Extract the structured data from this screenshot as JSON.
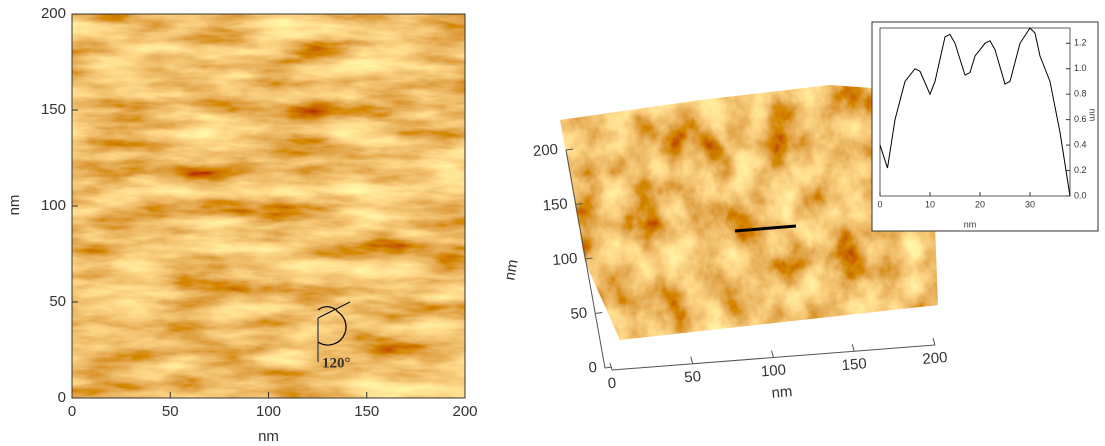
{
  "chart_data": [
    {
      "type": "image",
      "xlabel": "nm",
      "ylabel": "nm",
      "annotation": "120°",
      "xlim": [
        0,
        200
      ],
      "ylim": [
        0,
        200
      ],
      "xticks": [
        0,
        50,
        100,
        150,
        200
      ],
      "yticks": [
        0,
        50,
        100,
        150,
        200
      ]
    },
    {
      "type": "surface",
      "xlabel": "nm",
      "ylabel": "nm",
      "xlim": [
        0,
        200
      ],
      "ylim": [
        0,
        200
      ],
      "xticks": [
        0,
        50,
        100,
        150,
        200
      ],
      "yticks": [
        0,
        50,
        100,
        150,
        200
      ]
    },
    {
      "type": "line",
      "xlabel": "nm",
      "ylabel": "nm",
      "color": "#000000",
      "x": [
        0,
        1.5,
        3,
        5,
        7,
        8,
        10,
        11,
        13,
        14,
        15,
        17,
        18,
        19,
        20,
        21,
        22,
        23,
        25,
        26,
        28,
        30,
        31,
        32,
        34,
        36,
        38
      ],
      "values": [
        0.4,
        0.22,
        0.6,
        0.9,
        1.0,
        0.98,
        0.8,
        0.9,
        1.25,
        1.27,
        1.2,
        0.95,
        0.97,
        1.1,
        1.15,
        1.2,
        1.22,
        1.15,
        0.88,
        0.9,
        1.2,
        1.32,
        1.28,
        1.1,
        0.9,
        0.5,
        0.0
      ],
      "xlim": [
        0,
        38
      ],
      "ylim": [
        0,
        1.32
      ],
      "xticks": [
        0,
        10,
        20,
        30
      ],
      "yticks": [
        {
          "value": 0,
          "label": "0.0"
        },
        {
          "value": 0.2,
          "label": "0.2"
        },
        {
          "value": 0.4,
          "label": "0.4"
        },
        {
          "value": 0.6,
          "label": "0.6"
        },
        {
          "value": 0.8,
          "label": "0.8"
        },
        {
          "value": 1,
          "label": "1.0"
        },
        {
          "value": 1.2,
          "label": "1.2"
        }
      ]
    }
  ]
}
